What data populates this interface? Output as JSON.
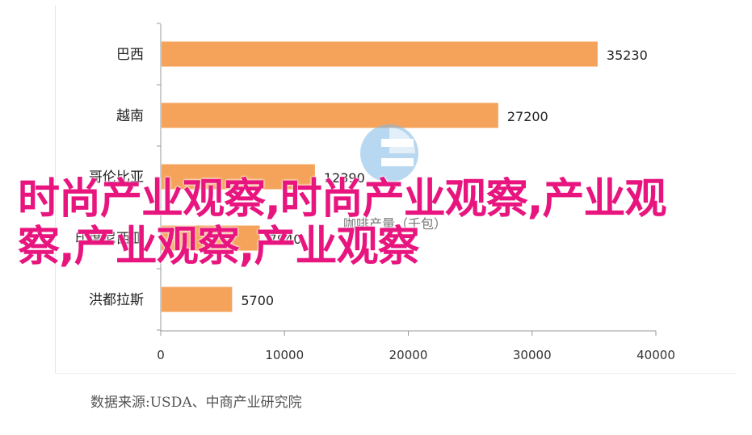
{
  "chart_data": {
    "type": "bar",
    "orientation": "horizontal",
    "categories": [
      "巴西",
      "越南",
      "哥伦比亚",
      "印度尼西亚",
      "洪都拉斯"
    ],
    "values": [
      35230,
      27200,
      12390,
      7940,
      5700
    ],
    "data_labels": [
      "35230",
      "27200",
      "12390",
      "7940",
      "5700"
    ],
    "xlim": [
      0,
      40000
    ],
    "x_ticks": [
      "0",
      "10000",
      "20000",
      "30000",
      "40000"
    ],
    "bar_color": "#f5a35a",
    "title": "",
    "xlabel": "",
    "ylabel": "",
    "grid": false,
    "legend": "none"
  },
  "watermark": {
    "text": "咖啡产量（千包）",
    "logo": "chinabgao-logo-icon"
  },
  "overlay": {
    "text": "时尚产业观察,时尚产业观察,产业观察,产业观察,产业观察"
  },
  "source": {
    "text": "数据来源:USDA、中商产业研究院"
  }
}
